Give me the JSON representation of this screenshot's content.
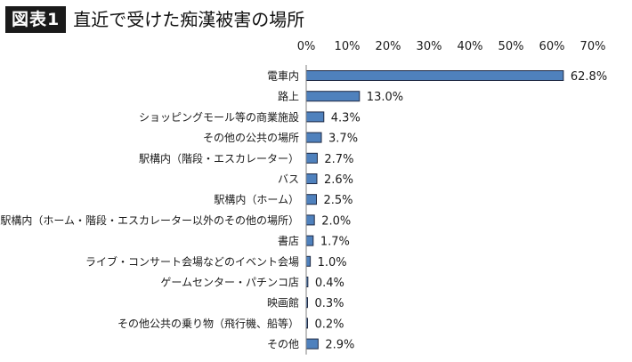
{
  "header": {
    "badge": "図表1",
    "title": "直近で受けた痴漢被害の場所"
  },
  "chart_data": {
    "type": "bar",
    "orientation": "horizontal",
    "title": "直近で受けた痴漢被害の場所",
    "xlim": [
      0,
      70
    ],
    "ticks": [
      0,
      10,
      20,
      30,
      40,
      50,
      60,
      70
    ],
    "tick_labels": [
      "0%",
      "10%",
      "20%",
      "30%",
      "40%",
      "50%",
      "60%",
      "70%"
    ],
    "grid": false,
    "bar_color": "#4f81bd",
    "bar_edge_color": "#1f2a44",
    "categories": [
      "電車内",
      "路上",
      "ショッピングモール等の商業施設",
      "その他の公共の場所",
      "駅構内（階段・エスカレーター）",
      "バス",
      "駅構内（ホーム）",
      "駅構内（ホーム・階段・エスカレーター以外のその他の場所）",
      "書店",
      "ライブ・コンサート会場などのイベント会場",
      "ゲームセンター・パチンコ店",
      "映画館",
      "その他公共の乗り物（飛行機、船等）",
      "その他"
    ],
    "values": [
      62.8,
      13.0,
      4.3,
      3.7,
      2.7,
      2.6,
      2.5,
      2.0,
      1.7,
      1.0,
      0.4,
      0.3,
      0.2,
      2.9
    ],
    "value_labels": [
      "62.8%",
      "13.0%",
      "4.3%",
      "3.7%",
      "2.7%",
      "2.6%",
      "2.5%",
      "2.0%",
      "1.7%",
      "1.0%",
      "0.4%",
      "0.3%",
      "0.2%",
      "2.9%"
    ]
  }
}
